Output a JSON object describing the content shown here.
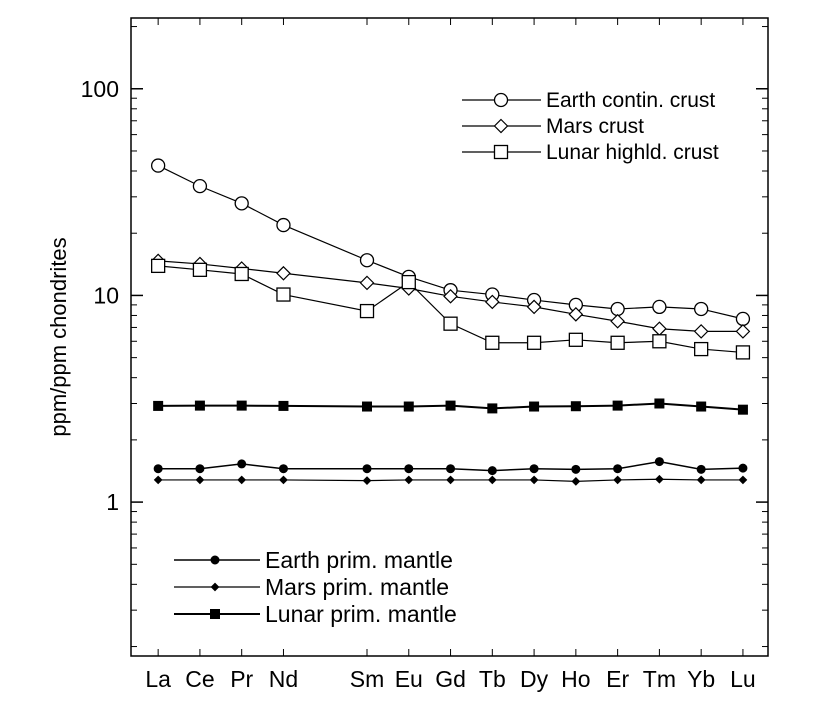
{
  "chart_data": {
    "type": "line",
    "ylabel": "ppm/ppm chondrites",
    "yscale": "log",
    "ylim": [
      0.18,
      220
    ],
    "y_ticks": [
      {
        "value": 1,
        "label": "1"
      },
      {
        "value": 10,
        "label": "10"
      },
      {
        "value": 100,
        "label": "100"
      }
    ],
    "x": [
      "La",
      "Ce",
      "Pr",
      "Nd",
      "Sm",
      "Eu",
      "Gd",
      "Tb",
      "Dy",
      "Ho",
      "Er",
      "Tm",
      "Yb",
      "Lu"
    ],
    "x_positions": [
      57,
      58,
      59,
      60,
      62,
      63,
      64,
      65,
      66,
      67,
      68,
      69,
      70,
      71
    ],
    "xlim": [
      56.35,
      71.6
    ],
    "grid": false,
    "legends": [
      {
        "placement": "top-right",
        "series": [
          "Earth contin. crust",
          "Mars crust",
          "Lunar highld. crust"
        ]
      },
      {
        "placement": "bottom-left",
        "series": [
          "Earth prim. mantle",
          "Mars prim. mantle",
          "Lunar prim. mantle"
        ]
      }
    ],
    "series": [
      {
        "name": "Earth contin. crust",
        "marker": "circle-open",
        "x": [
          "La",
          "Ce",
          "Pr",
          "Nd",
          "Sm",
          "Eu",
          "Gd",
          "Tb",
          "Dy",
          "Ho",
          "Er",
          "Tm",
          "Yb",
          "Lu"
        ],
        "values": [
          42.5,
          33.8,
          27.9,
          21.9,
          14.8,
          12.3,
          10.6,
          10.1,
          9.5,
          9.0,
          8.6,
          8.8,
          8.6,
          7.7
        ]
      },
      {
        "name": "Mars crust",
        "marker": "diamond-open",
        "x": [
          "La",
          "Ce",
          "Pr",
          "Nd",
          "Sm",
          "Eu",
          "Gd",
          "Tb",
          "Dy",
          "Ho",
          "Er",
          "Tm",
          "Yb",
          "Lu"
        ],
        "values": [
          14.7,
          14.2,
          13.5,
          12.8,
          11.5,
          10.8,
          9.9,
          9.3,
          8.8,
          8.1,
          7.5,
          6.9,
          6.7,
          6.7
        ]
      },
      {
        "name": "Lunar highld. crust",
        "marker": "square-open",
        "x": [
          "La",
          "Ce",
          "Pr",
          "Nd",
          "Sm",
          "Eu",
          "Gd",
          "Tb",
          "Dy",
          "Ho",
          "Er",
          "Tm",
          "Yb",
          "Lu"
        ],
        "values": [
          13.9,
          13.3,
          12.7,
          10.1,
          8.4,
          11.6,
          7.3,
          5.9,
          5.9,
          6.1,
          5.9,
          6.0,
          5.5,
          5.3
        ]
      },
      {
        "name": "Earth prim. mantle",
        "marker": "circle-filled",
        "x": [
          "La",
          "Ce",
          "Pr",
          "Nd",
          "Sm",
          "Eu",
          "Gd",
          "Tb",
          "Dy",
          "Ho",
          "Er",
          "Tm",
          "Yb",
          "Lu"
        ],
        "values": [
          1.45,
          1.45,
          1.53,
          1.45,
          1.45,
          1.45,
          1.45,
          1.42,
          1.45,
          1.44,
          1.45,
          1.57,
          1.44,
          1.46
        ]
      },
      {
        "name": "Mars prim. mantle",
        "marker": "diamond-filled",
        "x": [
          "La",
          "Ce",
          "Pr",
          "Nd",
          "Sm",
          "Eu",
          "Gd",
          "Tb",
          "Dy",
          "Ho",
          "Er",
          "Tm",
          "Yb",
          "Lu"
        ],
        "values": [
          1.28,
          1.28,
          1.28,
          1.28,
          1.27,
          1.28,
          1.28,
          1.28,
          1.28,
          1.26,
          1.28,
          1.29,
          1.28,
          1.28
        ]
      },
      {
        "name": "Lunar prim. mantle",
        "marker": "square-filled",
        "x": [
          "La",
          "Ce",
          "Pr",
          "Nd",
          "Sm",
          "Eu",
          "Gd",
          "Tb",
          "Dy",
          "Ho",
          "Er",
          "Tm",
          "Yb",
          "Lu"
        ],
        "values": [
          2.92,
          2.93,
          2.93,
          2.92,
          2.9,
          2.9,
          2.93,
          2.84,
          2.9,
          2.91,
          2.93,
          3.0,
          2.9,
          2.8
        ]
      }
    ]
  }
}
